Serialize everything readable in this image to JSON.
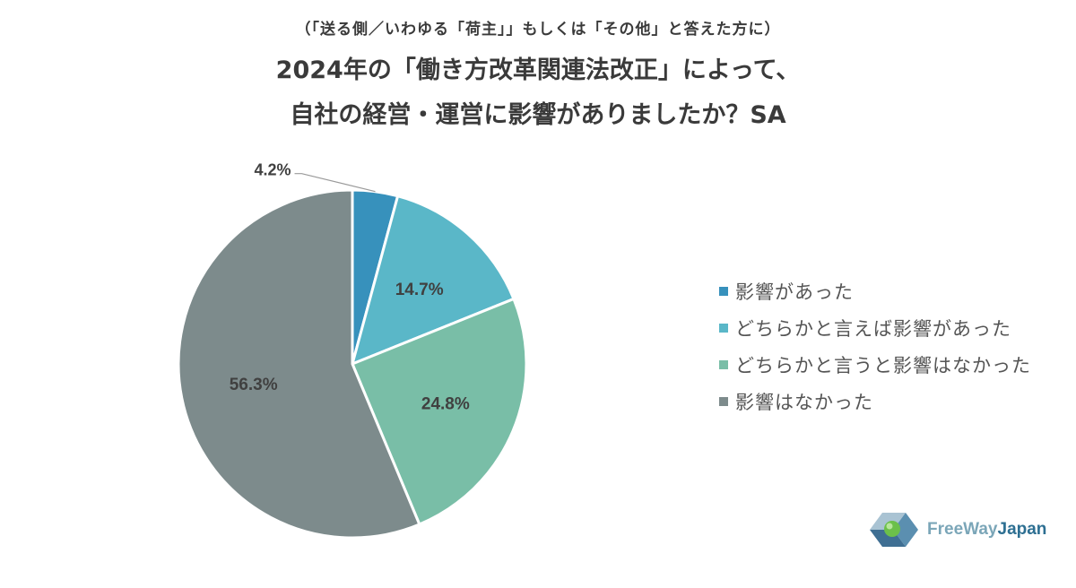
{
  "chart_data": {
    "type": "pie",
    "subtitle": "（「送る側／いわゆる「荷主」」もしくは「その他」と答えた方に）",
    "title_lines": [
      "2024年の「働き方改革関連法改正」によって、",
      "自社の経営・運営に影響がありましたか？SA"
    ],
    "series": [
      {
        "name": "影響があった",
        "value": 4.2,
        "label": "4.2%",
        "color": "#3791bc"
      },
      {
        "name": "どちらかと言えば影響があった",
        "value": 14.7,
        "label": "14.7%",
        "color": "#5ab7c8"
      },
      {
        "name": "どちらかと言うと影響はなかった",
        "value": 24.8,
        "label": "24.8%",
        "color": "#79bea7"
      },
      {
        "name": "影響はなかった",
        "value": 56.3,
        "label": "56.3%",
        "color": "#7d8b8c"
      }
    ],
    "legend_position": "right"
  },
  "logo": {
    "text_a": "FreeWay",
    "text_b": "Japan"
  }
}
